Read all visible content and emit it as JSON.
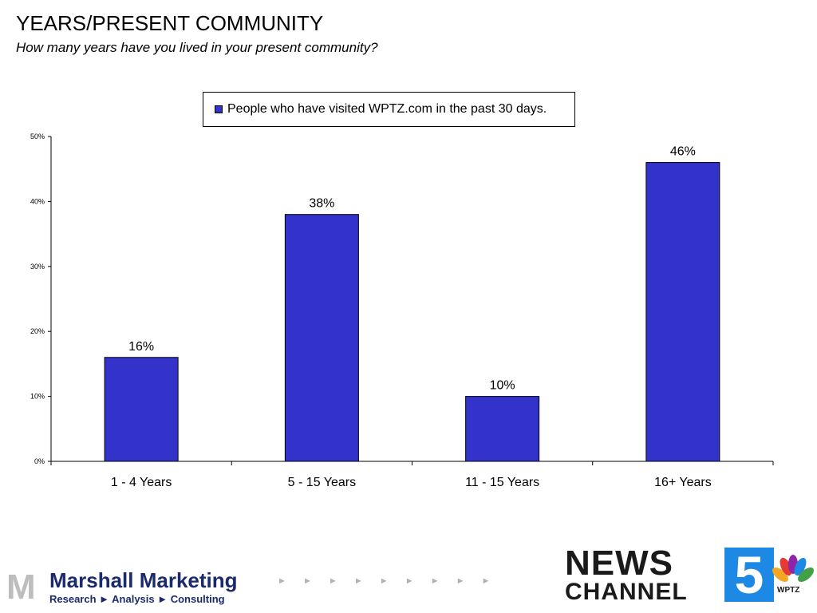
{
  "header": {
    "title": "YEARS/PRESENT COMMUNITY",
    "subtitle": "How many years have you lived in your present community?"
  },
  "chart_data": {
    "type": "bar",
    "categories": [
      "1 - 4 Years",
      "5 - 15 Years",
      "11 - 15 Years",
      "16+ Years"
    ],
    "series": [
      {
        "name": "People who have visited WPTZ.com in the past 30 days.",
        "values": [
          16,
          38,
          10,
          46
        ],
        "color": "#3333cc"
      }
    ],
    "data_labels": [
      "16%",
      "38%",
      "10%",
      "46%"
    ],
    "ylim": [
      0,
      50
    ],
    "yticks": [
      0,
      10,
      20,
      30,
      40,
      50
    ],
    "ytick_labels": [
      "0%",
      "10%",
      "20%",
      "30%",
      "40%",
      "50%"
    ],
    "grid": false,
    "legend_position": "top-center"
  },
  "footer": {
    "left_logo": {
      "mark": "M",
      "name": "Marshall Marketing",
      "tagline": "Research ► Analysis ► Consulting",
      "arrows": "► ► ► ► ► ► ► ► ►"
    },
    "right_logo": {
      "line1": "NEWS",
      "line2": "CHANNEL",
      "number": "5",
      "callsign": "WPTZ",
      "icon": "nbc-peacock-icon"
    }
  }
}
